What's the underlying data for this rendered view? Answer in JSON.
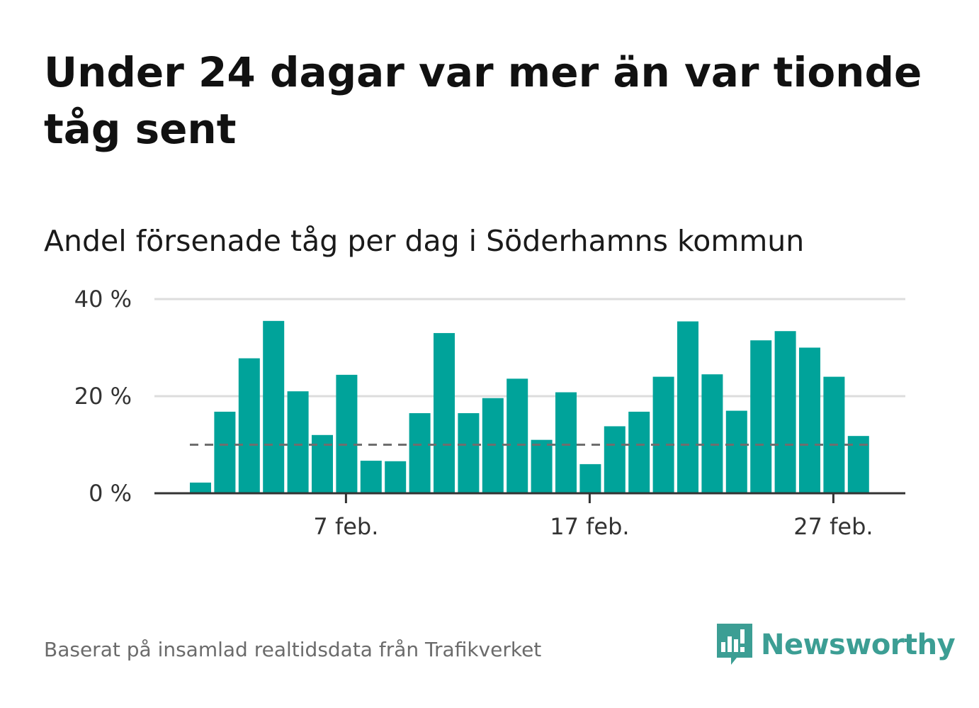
{
  "header": {
    "title": "Under 24 dagar var mer än var tionde tåg sent",
    "subtitle": "Andel försenade tåg per dag i Söderhamns kommun"
  },
  "footer": {
    "source": "Baserat på insamlad realtidsdata från Trafikverket",
    "brand": "Newsworthy"
  },
  "colors": {
    "bar": "#00a39a",
    "reference_line": "#6e6e6e",
    "grid": "#dddddd",
    "axis": "#333333",
    "brand": "#3c9e94"
  },
  "chart_data": {
    "type": "bar",
    "x_unit": "day of February",
    "x": [
      1,
      2,
      3,
      4,
      5,
      6,
      7,
      8,
      9,
      10,
      11,
      12,
      13,
      14,
      15,
      16,
      17,
      18,
      19,
      20,
      21,
      22,
      23,
      24,
      25,
      26,
      27,
      28
    ],
    "values": [
      2.2,
      16.8,
      27.8,
      35.5,
      21.0,
      12.0,
      24.4,
      6.7,
      6.6,
      16.5,
      33.0,
      16.5,
      19.6,
      23.6,
      11.0,
      20.8,
      6.0,
      13.8,
      16.8,
      24.0,
      35.4,
      24.5,
      17.0,
      31.5,
      33.4,
      30.0,
      24.0,
      11.8
    ],
    "reference_line": 10,
    "ylim": [
      0,
      40
    ],
    "yticks": [
      0,
      20,
      40
    ],
    "ytick_labels": [
      "0 %",
      "20 %",
      "40 %"
    ],
    "xticks": [
      7,
      17,
      27
    ],
    "xtick_labels": [
      "7 feb.",
      "17 feb.",
      "27 feb."
    ],
    "grid": true,
    "legend": "none"
  }
}
